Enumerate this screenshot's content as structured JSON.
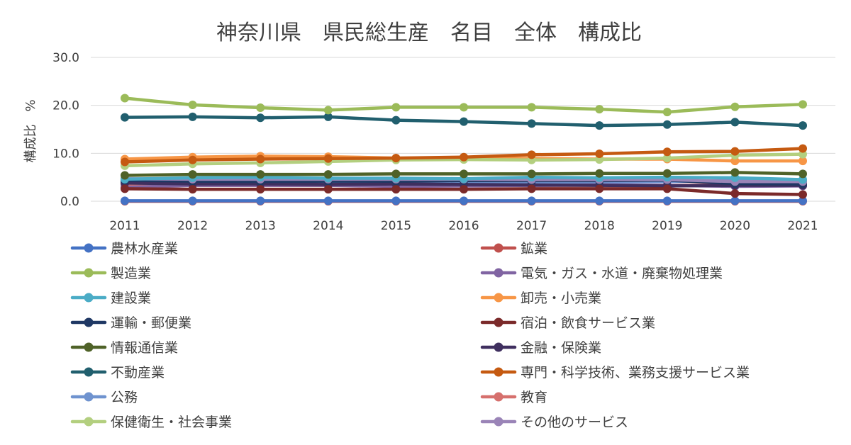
{
  "chart_data": {
    "type": "line",
    "title": "神奈川県　県民総生産　名目　全体　構成比",
    "xlabel": "",
    "ylabel": "構成比　%",
    "ylim": [
      0,
      30
    ],
    "yticks": [
      "0.0",
      "10.0",
      "20.0",
      "30.0"
    ],
    "grid": true,
    "legend_position": "bottom",
    "categories": [
      "2011",
      "2012",
      "2013",
      "2014",
      "2015",
      "2016",
      "2017",
      "2018",
      "2019",
      "2020",
      "2021"
    ],
    "series": [
      {
        "name": "農林水産業",
        "color": "#4472c4",
        "values": [
          0.1,
          0.1,
          0.1,
          0.1,
          0.1,
          0.1,
          0.1,
          0.1,
          0.1,
          0.1,
          0.1
        ]
      },
      {
        "name": "鉱業",
        "color": "#c0504d",
        "values": [
          0.0,
          0.0,
          0.0,
          0.0,
          0.0,
          0.0,
          0.0,
          0.0,
          0.0,
          0.0,
          0.0
        ]
      },
      {
        "name": "製造業",
        "color": "#9bbb59",
        "values": [
          21.5,
          20.1,
          19.5,
          19.0,
          19.6,
          19.6,
          19.6,
          19.2,
          18.6,
          19.7,
          20.2
        ]
      },
      {
        "name": "電気・ガス・水道・廃棄物処理業",
        "color": "#8064a2",
        "values": [
          2.9,
          3.3,
          3.3,
          3.3,
          3.1,
          3.2,
          3.3,
          3.4,
          3.3,
          3.1,
          3.2
        ]
      },
      {
        "name": "建設業",
        "color": "#4bacc6",
        "values": [
          4.6,
          4.9,
          5.0,
          4.8,
          4.8,
          4.7,
          5.0,
          4.9,
          5.0,
          4.9,
          4.5
        ]
      },
      {
        "name": "卸売・小売業",
        "color": "#f79646",
        "values": [
          8.8,
          9.2,
          9.4,
          9.3,
          9.0,
          9.0,
          8.9,
          8.8,
          8.8,
          8.4,
          8.4
        ]
      },
      {
        "name": "運輸・郵便業",
        "color": "#1f3864",
        "values": [
          4.4,
          4.2,
          4.1,
          4.2,
          4.2,
          4.3,
          4.3,
          4.3,
          4.4,
          3.7,
          3.6
        ]
      },
      {
        "name": "宿泊・飲食サービス業",
        "color": "#7b2a2a",
        "values": [
          2.6,
          2.5,
          2.5,
          2.5,
          2.5,
          2.5,
          2.6,
          2.6,
          2.6,
          1.6,
          1.4
        ]
      },
      {
        "name": "情報通信業",
        "color": "#4f6228",
        "values": [
          5.4,
          5.6,
          5.6,
          5.6,
          5.7,
          5.7,
          5.7,
          5.8,
          5.8,
          6.0,
          5.7
        ]
      },
      {
        "name": "金融・保険業",
        "color": "#3f2f5f",
        "values": [
          3.8,
          3.6,
          3.6,
          3.5,
          3.6,
          3.5,
          3.4,
          3.3,
          3.2,
          3.3,
          3.3
        ]
      },
      {
        "name": "不動産業",
        "color": "#215f6e",
        "values": [
          17.5,
          17.6,
          17.4,
          17.6,
          16.9,
          16.6,
          16.2,
          15.8,
          16.0,
          16.5,
          15.8
        ]
      },
      {
        "name": "専門・科学技術、業務支援サービス業",
        "color": "#c55a11",
        "values": [
          8.2,
          8.6,
          8.8,
          8.9,
          9.0,
          9.2,
          9.7,
          9.9,
          10.3,
          10.4,
          11.0
        ]
      },
      {
        "name": "公務",
        "color": "#6f93cf",
        "values": [
          4.1,
          4.1,
          4.0,
          4.0,
          4.0,
          4.0,
          4.0,
          4.0,
          4.1,
          4.3,
          4.1
        ]
      },
      {
        "name": "教育",
        "color": "#d6706d",
        "values": [
          3.4,
          3.3,
          3.3,
          3.3,
          3.3,
          3.3,
          3.3,
          3.3,
          3.3,
          3.4,
          3.3
        ]
      },
      {
        "name": "保健衛生・社会事業",
        "color": "#b3cf7f",
        "values": [
          7.4,
          7.8,
          8.0,
          8.3,
          8.6,
          8.7,
          8.6,
          8.7,
          9.0,
          9.6,
          9.8
        ]
      },
      {
        "name": "その他のサービス",
        "color": "#9a84b7",
        "values": [
          4.7,
          4.6,
          4.6,
          4.6,
          4.6,
          4.6,
          4.5,
          4.5,
          4.5,
          4.1,
          4.1
        ]
      }
    ]
  }
}
